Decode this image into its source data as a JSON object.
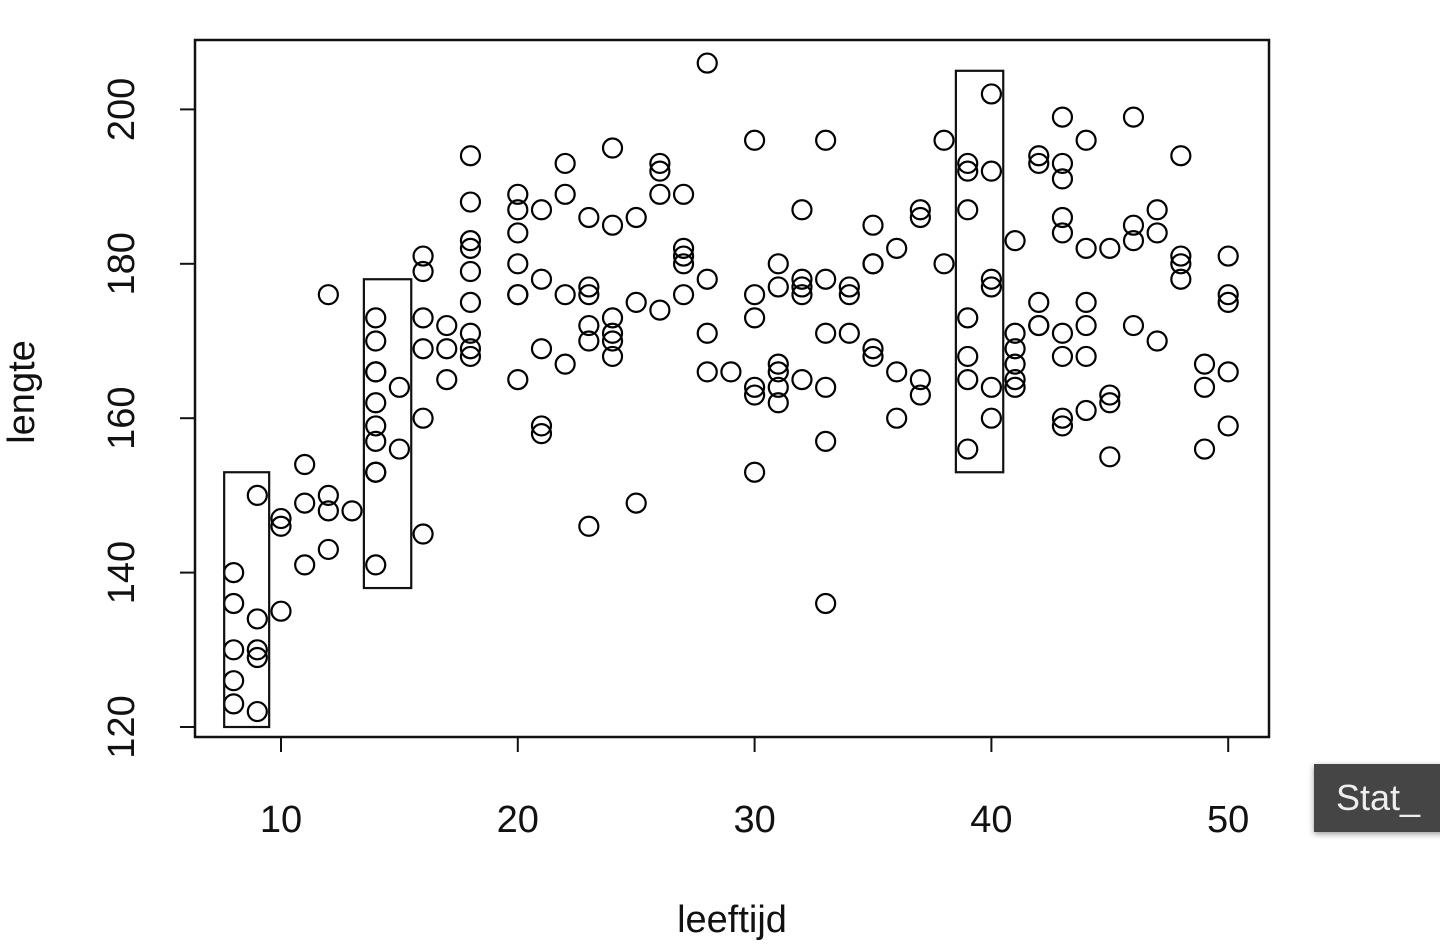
{
  "chart_data": {
    "type": "scatter",
    "title": "",
    "xlabel": "leeftijd",
    "ylabel": "lengte",
    "xlim": [
      6.5,
      51.8
    ],
    "ylim": [
      118.5,
      209
    ],
    "xticks": [
      10,
      20,
      30,
      40,
      50
    ],
    "yticks": [
      120,
      140,
      160,
      180,
      200
    ],
    "grid": false,
    "marker": "open-circle",
    "color": "#000000",
    "points": [
      [
        8,
        140
      ],
      [
        8,
        136
      ],
      [
        8,
        130
      ],
      [
        8,
        126
      ],
      [
        8,
        123
      ],
      [
        9,
        150
      ],
      [
        9,
        134
      ],
      [
        9,
        130
      ],
      [
        9,
        129
      ],
      [
        9,
        122
      ],
      [
        10,
        147
      ],
      [
        10,
        146
      ],
      [
        10,
        135
      ],
      [
        11,
        154
      ],
      [
        11,
        149
      ],
      [
        11,
        141
      ],
      [
        12,
        176
      ],
      [
        12,
        150
      ],
      [
        12,
        148
      ],
      [
        12,
        143
      ],
      [
        13,
        148
      ],
      [
        14,
        173
      ],
      [
        14,
        170
      ],
      [
        14,
        166
      ],
      [
        14,
        166
      ],
      [
        14,
        162
      ],
      [
        14,
        159
      ],
      [
        14,
        157
      ],
      [
        14,
        153
      ],
      [
        14,
        153
      ],
      [
        14,
        141
      ],
      [
        15,
        164
      ],
      [
        15,
        156
      ],
      [
        16,
        181
      ],
      [
        16,
        179
      ],
      [
        16,
        173
      ],
      [
        16,
        169
      ],
      [
        16,
        160
      ],
      [
        16,
        145
      ],
      [
        17,
        172
      ],
      [
        17,
        169
      ],
      [
        17,
        165
      ],
      [
        18,
        194
      ],
      [
        18,
        188
      ],
      [
        18,
        183
      ],
      [
        18,
        182
      ],
      [
        18,
        179
      ],
      [
        18,
        175
      ],
      [
        18,
        171
      ],
      [
        18,
        169
      ],
      [
        18,
        168
      ],
      [
        20,
        189
      ],
      [
        20,
        187
      ],
      [
        20,
        184
      ],
      [
        20,
        180
      ],
      [
        20,
        176
      ],
      [
        20,
        176
      ],
      [
        20,
        165
      ],
      [
        21,
        187
      ],
      [
        21,
        178
      ],
      [
        21,
        169
      ],
      [
        21,
        159
      ],
      [
        21,
        158
      ],
      [
        22,
        193
      ],
      [
        22,
        189
      ],
      [
        22,
        176
      ],
      [
        22,
        167
      ],
      [
        23,
        186
      ],
      [
        23,
        177
      ],
      [
        23,
        176
      ],
      [
        23,
        172
      ],
      [
        23,
        170
      ],
      [
        23,
        146
      ],
      [
        24,
        195
      ],
      [
        24,
        185
      ],
      [
        24,
        173
      ],
      [
        24,
        171
      ],
      [
        24,
        170
      ],
      [
        24,
        168
      ],
      [
        25,
        186
      ],
      [
        25,
        175
      ],
      [
        25,
        149
      ],
      [
        26,
        193
      ],
      [
        26,
        192
      ],
      [
        26,
        189
      ],
      [
        26,
        174
      ],
      [
        27,
        189
      ],
      [
        27,
        182
      ],
      [
        27,
        181
      ],
      [
        27,
        180
      ],
      [
        27,
        176
      ],
      [
        28,
        206
      ],
      [
        28,
        178
      ],
      [
        28,
        171
      ],
      [
        28,
        166
      ],
      [
        29,
        166
      ],
      [
        30,
        196
      ],
      [
        30,
        176
      ],
      [
        30,
        173
      ],
      [
        30,
        164
      ],
      [
        30,
        163
      ],
      [
        30,
        153
      ],
      [
        31,
        180
      ],
      [
        31,
        177
      ],
      [
        31,
        167
      ],
      [
        31,
        166
      ],
      [
        31,
        164
      ],
      [
        31,
        162
      ],
      [
        32,
        187
      ],
      [
        32,
        178
      ],
      [
        32,
        177
      ],
      [
        32,
        176
      ],
      [
        32,
        165
      ],
      [
        33,
        196
      ],
      [
        33,
        178
      ],
      [
        33,
        171
      ],
      [
        33,
        164
      ],
      [
        33,
        157
      ],
      [
        33,
        136
      ],
      [
        34,
        177
      ],
      [
        34,
        176
      ],
      [
        34,
        171
      ],
      [
        35,
        185
      ],
      [
        35,
        180
      ],
      [
        35,
        180
      ],
      [
        35,
        169
      ],
      [
        35,
        168
      ],
      [
        36,
        182
      ],
      [
        36,
        166
      ],
      [
        36,
        160
      ],
      [
        37,
        187
      ],
      [
        37,
        186
      ],
      [
        37,
        165
      ],
      [
        37,
        163
      ],
      [
        38,
        196
      ],
      [
        38,
        180
      ],
      [
        39,
        193
      ],
      [
        39,
        192
      ],
      [
        39,
        187
      ],
      [
        39,
        173
      ],
      [
        39,
        168
      ],
      [
        39,
        165
      ],
      [
        39,
        156
      ],
      [
        40,
        202
      ],
      [
        40,
        192
      ],
      [
        40,
        178
      ],
      [
        40,
        177
      ],
      [
        40,
        164
      ],
      [
        40,
        160
      ],
      [
        41,
        183
      ],
      [
        41,
        171
      ],
      [
        41,
        169
      ],
      [
        41,
        167
      ],
      [
        41,
        165
      ],
      [
        41,
        164
      ],
      [
        42,
        194
      ],
      [
        42,
        193
      ],
      [
        42,
        175
      ],
      [
        42,
        172
      ],
      [
        42,
        172
      ],
      [
        43,
        199
      ],
      [
        43,
        193
      ],
      [
        43,
        191
      ],
      [
        43,
        186
      ],
      [
        43,
        184
      ],
      [
        43,
        171
      ],
      [
        43,
        168
      ],
      [
        43,
        160
      ],
      [
        43,
        159
      ],
      [
        44,
        196
      ],
      [
        44,
        182
      ],
      [
        44,
        175
      ],
      [
        44,
        172
      ],
      [
        44,
        168
      ],
      [
        44,
        161
      ],
      [
        45,
        182
      ],
      [
        45,
        163
      ],
      [
        45,
        162
      ],
      [
        45,
        155
      ],
      [
        46,
        199
      ],
      [
        46,
        185
      ],
      [
        46,
        183
      ],
      [
        46,
        172
      ],
      [
        47,
        187
      ],
      [
        47,
        184
      ],
      [
        47,
        170
      ],
      [
        48,
        194
      ],
      [
        48,
        181
      ],
      [
        48,
        180
      ],
      [
        48,
        178
      ],
      [
        49,
        167
      ],
      [
        49,
        164
      ],
      [
        49,
        156
      ],
      [
        50,
        181
      ],
      [
        50,
        176
      ],
      [
        50,
        175
      ],
      [
        50,
        166
      ],
      [
        50,
        159
      ]
    ],
    "annotations": [
      {
        "type": "rectangle",
        "x": [
          7.6,
          9.5
        ],
        "y": [
          120,
          153
        ]
      },
      {
        "type": "rectangle",
        "x": [
          13.5,
          15.5
        ],
        "y": [
          138,
          178
        ]
      },
      {
        "type": "rectangle",
        "x": [
          38.5,
          40.5
        ],
        "y": [
          153,
          205
        ]
      }
    ]
  },
  "tooltip": {
    "text": "Stat_"
  }
}
